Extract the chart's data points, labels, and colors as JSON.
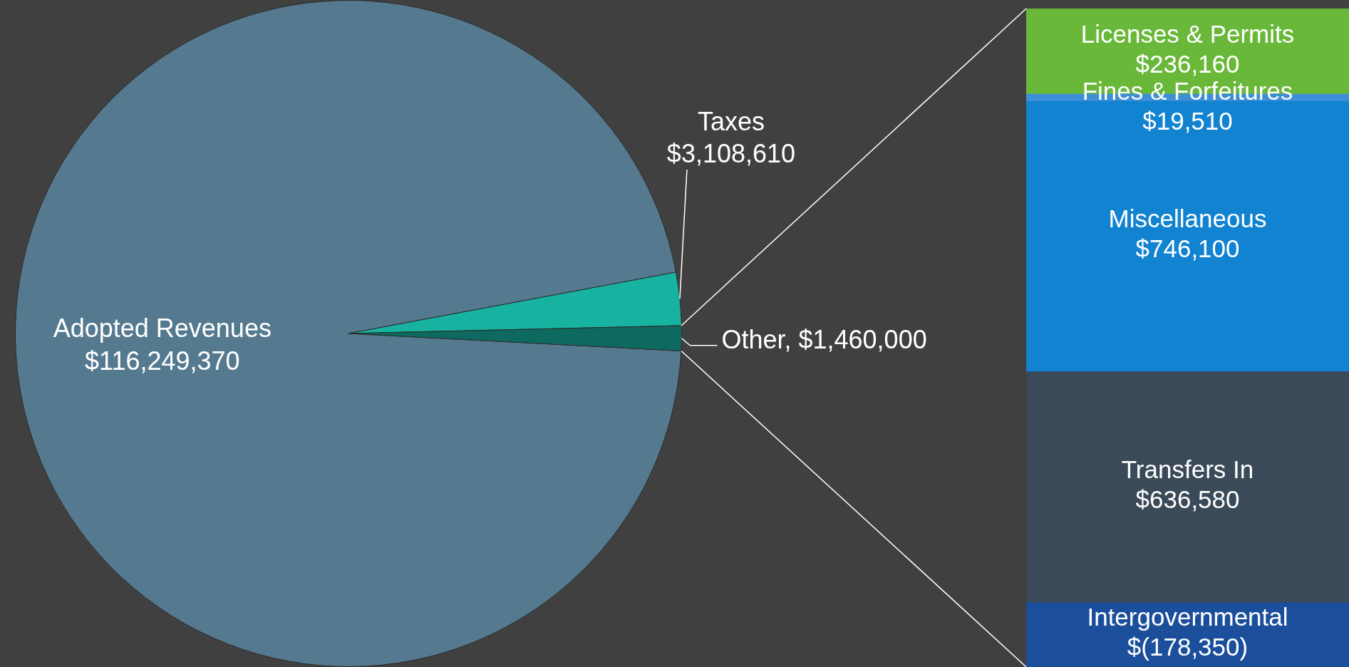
{
  "chart_data": [
    {
      "type": "pie",
      "categories": [
        "Adopted Revenues",
        "Taxes",
        "Other"
      ],
      "values": [
        116249370,
        3108610,
        1460000
      ],
      "colors": [
        "#557a90",
        "#17b3a0",
        "#0e6a60"
      ],
      "value_labels": [
        "$116,249,370",
        "$3,108,610",
        "$1,460,000"
      ]
    },
    {
      "type": "bar",
      "stacked": true,
      "categories": [
        null
      ],
      "series": [
        {
          "name": "Transfers In",
          "color": "#3a4a58",
          "values": [
            636580
          ],
          "value_labels": [
            "$636,580"
          ]
        },
        {
          "name": "Miscellaneous",
          "color": "#1283d0",
          "values": [
            746100
          ],
          "value_labels": [
            "$746,100"
          ]
        },
        {
          "name": "Fines & Forfeitures",
          "color": "#3d8fd8",
          "values": [
            19510
          ],
          "value_labels": [
            "$19,510"
          ]
        },
        {
          "name": "Intergovernmental",
          "color": "#1b4f9c",
          "values": [
            -178350
          ],
          "value_labels": [
            "$(178,350)"
          ]
        },
        {
          "name": "Licenses & Permits",
          "color": "#6ab83a",
          "values": [
            236160
          ],
          "value_labels": [
            "$236,160"
          ]
        }
      ]
    }
  ]
}
